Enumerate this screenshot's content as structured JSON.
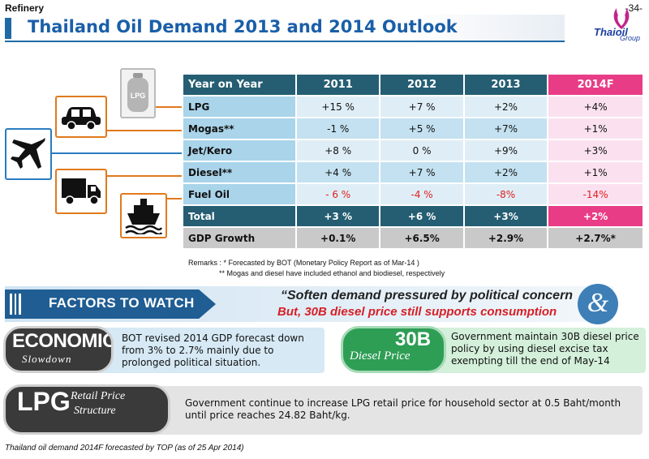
{
  "header": {
    "section": "Refinery",
    "page_number": "-34-",
    "title": "Thailand Oil Demand 2013 and 2014 Outlook",
    "logo_word": "Thaioil",
    "logo_group": "Group"
  },
  "icons": {
    "lpg_tank_label": "LPG"
  },
  "table": {
    "headers": [
      "Year on Year",
      "2011",
      "2012",
      "2013",
      "2014F"
    ],
    "rows": [
      {
        "label": "LPG",
        "values": [
          "+15 %",
          "+7 %",
          "+2%",
          "+4%"
        ]
      },
      {
        "label": "Mogas**",
        "values": [
          "-1 %",
          "+5 %",
          "+7%",
          "+1%"
        ]
      },
      {
        "label": "Jet/Kero",
        "values": [
          "+8 %",
          "0 %",
          "+9%",
          "+3%"
        ]
      },
      {
        "label": "Diesel**",
        "values": [
          "+4 %",
          "+7 %",
          "+2%",
          "+1%"
        ]
      },
      {
        "label": "Fuel Oil",
        "values": [
          "- 6 %",
          "-4 %",
          "-8%",
          "-14%"
        ]
      },
      {
        "label": "Total",
        "values": [
          "+3 %",
          "+6 %",
          "+3%",
          "+2%"
        ]
      },
      {
        "label": "GDP Growth",
        "values": [
          "+0.1%",
          "+6.5%",
          "+2.9%",
          "+2.7%*"
        ]
      }
    ]
  },
  "remarks": {
    "line1": "Remarks  : * Forecasted by BOT (Monetary Policy Report as of Mar-14 )",
    "line2": "** Mogas and diesel have included ethanol and biodiesel, respectively"
  },
  "factors": {
    "label": "FACTORS TO WATCH",
    "quote_line1": "“Soften demand pressured by political concern",
    "quote_line2": "But, 30B diesel price still supports consumption",
    "ampersand": "&"
  },
  "cards": {
    "economic": {
      "title": "ECONOMIC",
      "subtitle": "Slowdown",
      "text": "BOT revised 2014 GDP forecast down from 3% to 2.7% mainly due to prolonged political situation."
    },
    "diesel": {
      "title": "30B",
      "subtitle": "Diesel Price",
      "text": "Government maintain 30B diesel price policy by using diesel excise tax exempting till the end of May-14"
    },
    "lpg": {
      "title": "LPG",
      "subtitle1": "Retail Price",
      "subtitle2": "Structure",
      "text": "Government continue to increase LPG retail price for household sector at 0.5 Baht/month until price reaches 24.82 Baht/kg."
    }
  },
  "footer": "Thailand oil demand 2014F forecasted by TOP  (as of 25 Apr 2014)"
}
